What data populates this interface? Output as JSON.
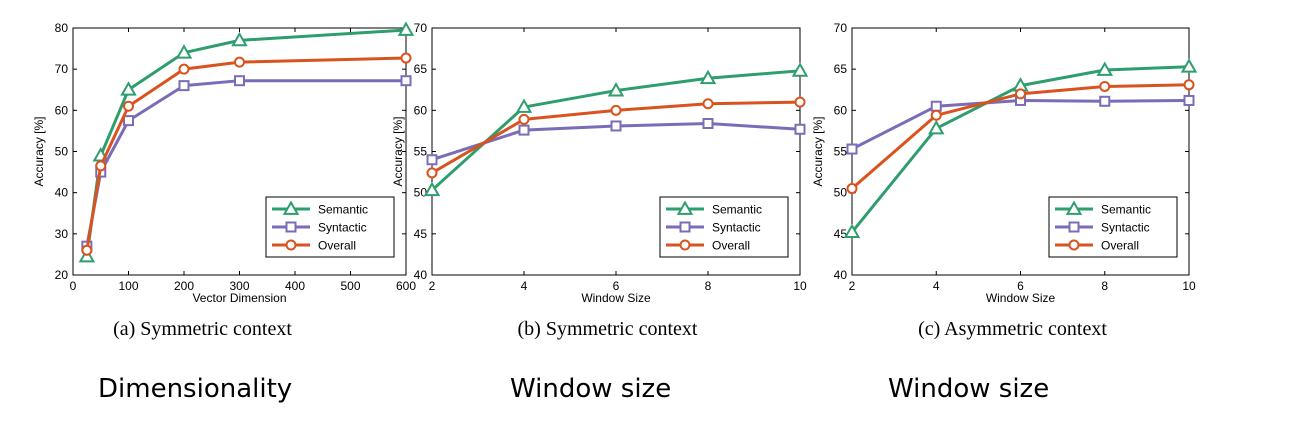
{
  "colors": {
    "semantic": "#2e9e6e",
    "syntactic": "#7b6cb8",
    "overall": "#d9531e"
  },
  "panels": [
    {
      "caption": "(a)  Symmetric context",
      "subtitle": "Dimensionality",
      "chart_data": {
        "type": "line",
        "xlabel": "Vector Dimension",
        "ylabel": "Accuracy [%]",
        "xlim": [
          0,
          600
        ],
        "ylim": [
          20,
          80
        ],
        "xticks": [
          0,
          100,
          200,
          300,
          400,
          500,
          600
        ],
        "yticks": [
          20,
          30,
          40,
          50,
          60,
          70,
          80
        ],
        "legend_position": "bottom-right",
        "grid": false,
        "series": [
          {
            "name": "Semantic",
            "marker": "triangle",
            "x": [
              25,
              50,
              100,
              200,
              300,
              600
            ],
            "y": [
              24.5,
              49,
              65,
              74,
              77,
              79.5
            ]
          },
          {
            "name": "Syntactic",
            "marker": "square",
            "x": [
              25,
              50,
              100,
              200,
              300,
              600
            ],
            "y": [
              27,
              45,
              57.5,
              66,
              67.2,
              67.2
            ]
          },
          {
            "name": "Overall",
            "marker": "circle",
            "x": [
              25,
              50,
              100,
              200,
              300,
              600
            ],
            "y": [
              26,
              46.5,
              61,
              70,
              71.7,
              72.7
            ]
          }
        ]
      }
    },
    {
      "caption": "(b)  Symmetric context",
      "subtitle": "Window size",
      "chart_data": {
        "type": "line",
        "xlabel": "Window Size",
        "ylabel": "Accuracy [%]",
        "xlim": [
          2,
          10
        ],
        "ylim": [
          40,
          70
        ],
        "xticks": [
          2,
          4,
          6,
          8,
          10
        ],
        "yticks": [
          40,
          45,
          50,
          55,
          60,
          65,
          70
        ],
        "legend_position": "bottom-right",
        "grid": false,
        "series": [
          {
            "name": "Semantic",
            "marker": "triangle",
            "x": [
              2,
              4,
              6,
              8,
              10
            ],
            "y": [
              50.3,
              60.4,
              62.4,
              63.9,
              64.8
            ]
          },
          {
            "name": "Syntactic",
            "marker": "square",
            "x": [
              2,
              4,
              6,
              8,
              10
            ],
            "y": [
              54,
              57.6,
              58.1,
              58.4,
              57.7
            ]
          },
          {
            "name": "Overall",
            "marker": "circle",
            "x": [
              2,
              4,
              6,
              8,
              10
            ],
            "y": [
              52.4,
              58.9,
              60.0,
              60.8,
              61.0
            ]
          }
        ]
      }
    },
    {
      "caption": "(c)  Asymmetric context",
      "subtitle": "Window size",
      "chart_data": {
        "type": "line",
        "xlabel": "Window Size",
        "ylabel": "Accuracy [%]",
        "xlim": [
          2,
          10
        ],
        "ylim": [
          40,
          70
        ],
        "xticks": [
          2,
          4,
          6,
          8,
          10
        ],
        "yticks": [
          40,
          45,
          50,
          55,
          60,
          65,
          70
        ],
        "legend_position": "bottom-right",
        "grid": false,
        "series": [
          {
            "name": "Semantic",
            "marker": "triangle",
            "x": [
              2,
              4,
              6,
              8,
              10
            ],
            "y": [
              45.2,
              57.8,
              63,
              64.9,
              65.3
            ]
          },
          {
            "name": "Syntactic",
            "marker": "square",
            "x": [
              2,
              4,
              6,
              8,
              10
            ],
            "y": [
              55.3,
              60.5,
              61.2,
              61.1,
              61.2
            ]
          },
          {
            "name": "Overall",
            "marker": "circle",
            "x": [
              2,
              4,
              6,
              8,
              10
            ],
            "y": [
              50.5,
              59.4,
              62.0,
              62.9,
              63.1
            ]
          }
        ]
      }
    }
  ]
}
